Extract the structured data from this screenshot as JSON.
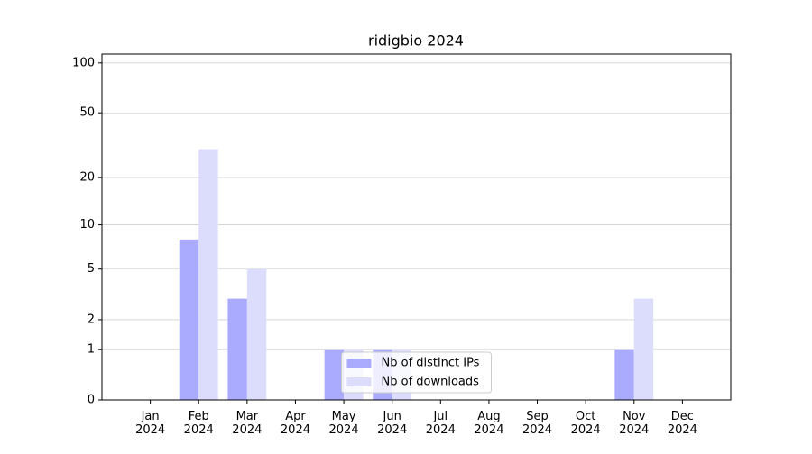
{
  "chart_data": {
    "type": "bar",
    "title": "ridigbio 2024",
    "categories": [
      "Jan 2024",
      "Feb 2024",
      "Mar 2024",
      "Apr 2024",
      "May 2024",
      "Jun 2024",
      "Jul 2024",
      "Aug 2024",
      "Sep 2024",
      "Oct 2024",
      "Nov 2024",
      "Dec 2024"
    ],
    "series": [
      {
        "name": "Nb of distinct IPs",
        "color": "#aaaaff",
        "values": [
          0,
          8,
          3,
          0,
          1,
          1,
          0,
          0,
          0,
          0,
          1,
          0
        ]
      },
      {
        "name": "Nb of downloads",
        "color": "#dcdcfc",
        "values": [
          0,
          30,
          5,
          0,
          1,
          1,
          0,
          0,
          0,
          0,
          3,
          0
        ]
      }
    ],
    "y_scale": "log1p",
    "ylim": [
      0,
      113
    ],
    "yticks": [
      0,
      1,
      2,
      5,
      10,
      20,
      50,
      100
    ],
    "grid": true,
    "legend": "lower center"
  }
}
